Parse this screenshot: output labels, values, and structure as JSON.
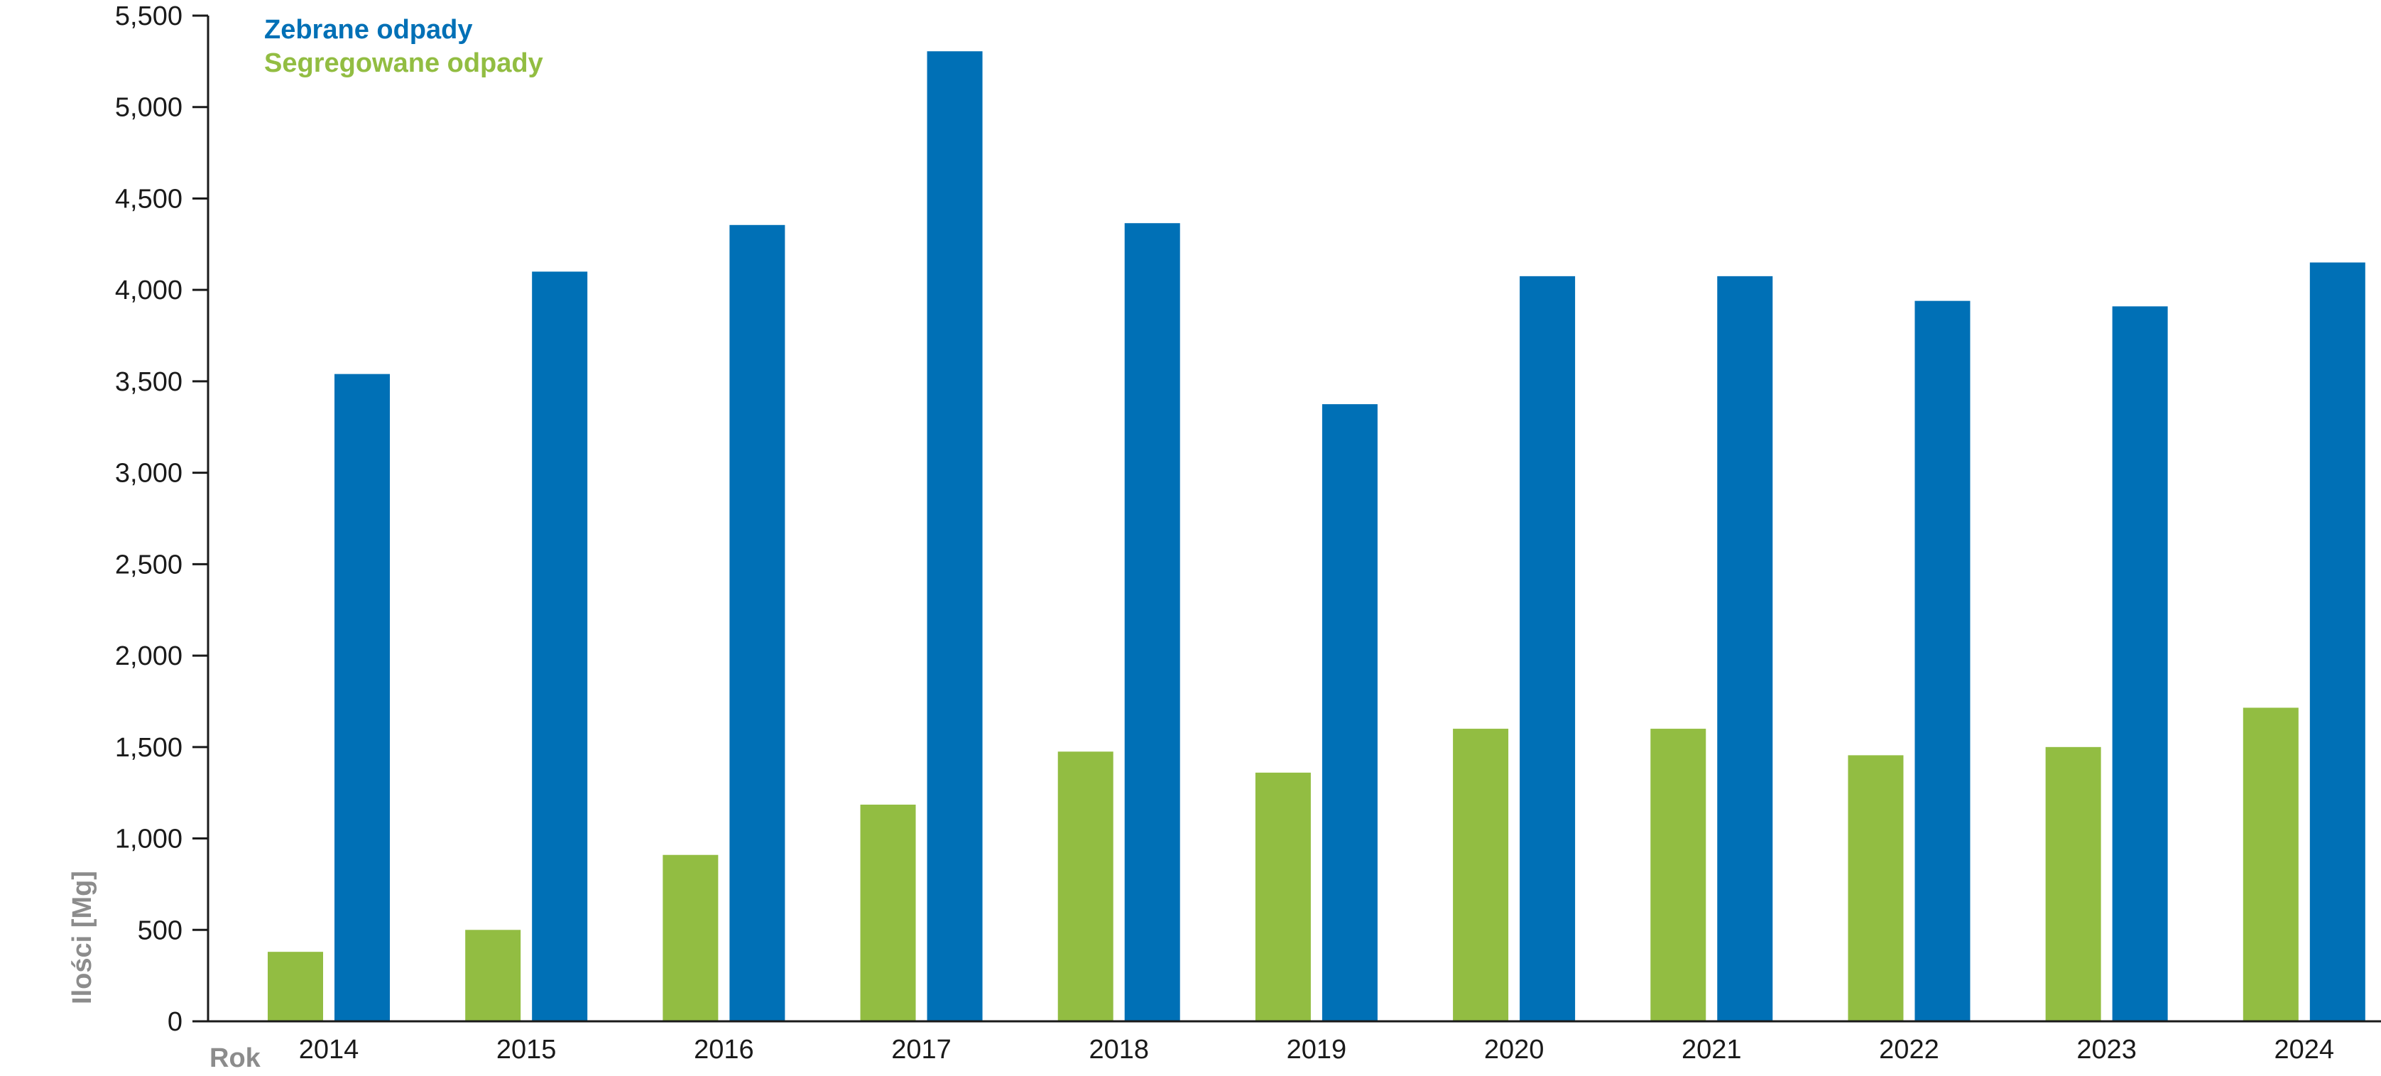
{
  "chart_data": {
    "type": "bar",
    "categories": [
      "2014",
      "2015",
      "2016",
      "2017",
      "2018",
      "2019",
      "2020",
      "2021",
      "2022",
      "2023",
      "2024"
    ],
    "series": [
      {
        "name": "Segregowane odpady",
        "color": "#92BD42",
        "values": [
          380,
          500,
          910,
          1185,
          1475,
          1360,
          1600,
          1600,
          1455,
          1500,
          1715
        ]
      },
      {
        "name": "Zebrane odpady",
        "color": "#0070B6",
        "values": [
          3540,
          4100,
          4355,
          5305,
          4365,
          3375,
          4075,
          4075,
          3940,
          3910,
          4150
        ]
      }
    ],
    "ylim": [
      0,
      5500
    ],
    "yticks": [
      0,
      500,
      1000,
      1500,
      2000,
      2500,
      3000,
      3500,
      4000,
      4500,
      5000,
      5500
    ],
    "ytick_labels": [
      "0",
      "500",
      "1,000",
      "1,500",
      "2,000",
      "2,500",
      "3,000",
      "3,500",
      "4,000",
      "4,500",
      "5,000",
      "5,500"
    ],
    "ylabel": "Ilości [Mg]",
    "xlabel": "Rok",
    "legend_position": "top-left",
    "grid": false,
    "axis_label_color": "#8C8C8C"
  }
}
